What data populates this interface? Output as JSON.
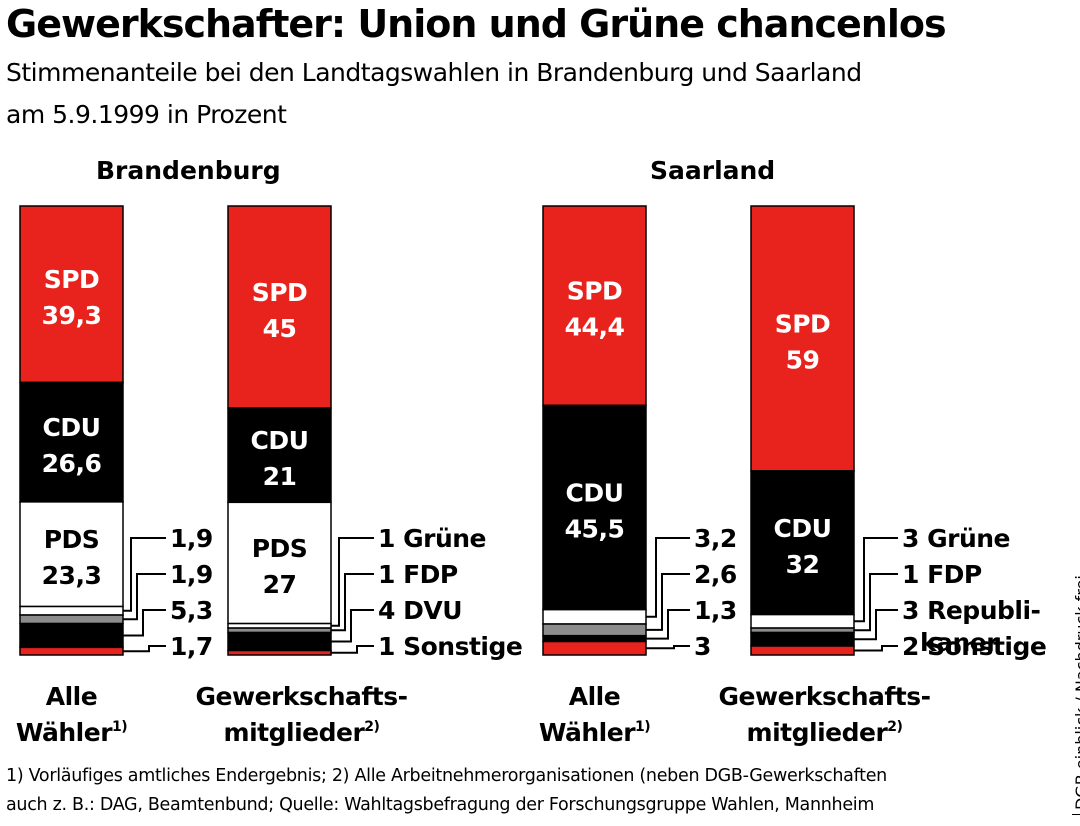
{
  "title": "Gewerkschafter: Union und Grüne chancenlos",
  "subtitle_line1": "Stimmenanteile bei den Landtagswahlen in Brandenburg und Saarland",
  "subtitle_line2": "am 5.9.1999 in Prozent",
  "source": "DGB einblick / Nachdruck frei",
  "footnote_line1": "1) Vorläufiges amtliches Endergebnis; 2) Alle Arbeitnehmerorganisationen (neben DGB-Gewerkschaften",
  "footnote_line2": "auch z. B.: DAG, Beamtenbund; Quelle: Wahltagsbefragung der Forschungsgruppe Wahlen, Mannheim",
  "colors": {
    "SPD": "#e8221c",
    "CDU": "#000000",
    "PDS": "#ffffff",
    "Grüne": "#ffffff",
    "FDP": "#8c8c8c",
    "DVU": "#000000",
    "Republikaner": "#000000",
    "Sonstige": "#e8221c"
  },
  "chart_data": [
    {
      "type": "bar",
      "stacked": true,
      "title": "Brandenburg",
      "bars": [
        {
          "label": "Alle Wähler",
          "note": "1)",
          "segments": [
            {
              "party": "SPD",
              "value": 39.3,
              "display": "39,3"
            },
            {
              "party": "CDU",
              "value": 26.6,
              "display": "26,6"
            },
            {
              "party": "PDS",
              "value": 23.3,
              "display": "23,3"
            },
            {
              "party": "Grüne",
              "value": 1.9,
              "display": "1,9"
            },
            {
              "party": "FDP",
              "value": 1.9,
              "display": "1,9"
            },
            {
              "party": "DVU",
              "value": 5.3,
              "display": "5,3"
            },
            {
              "party": "Sonstige",
              "value": 1.7,
              "display": "1,7"
            }
          ]
        },
        {
          "label": "Gewerkschafts-mitglieder",
          "note": "2)",
          "segments": [
            {
              "party": "SPD",
              "value": 45,
              "display": "45"
            },
            {
              "party": "CDU",
              "value": 21,
              "display": "21"
            },
            {
              "party": "PDS",
              "value": 27,
              "display": "27"
            },
            {
              "party": "Grüne",
              "value": 1,
              "display": "1"
            },
            {
              "party": "FDP",
              "value": 1,
              "display": "1"
            },
            {
              "party": "DVU",
              "value": 4,
              "display": "4"
            },
            {
              "party": "Sonstige",
              "value": 1,
              "display": "1"
            }
          ]
        }
      ]
    },
    {
      "type": "bar",
      "stacked": true,
      "title": "Saarland",
      "bars": [
        {
          "label": "Alle Wähler",
          "note": "1)",
          "segments": [
            {
              "party": "SPD",
              "value": 44.4,
              "display": "44,4"
            },
            {
              "party": "CDU",
              "value": 45.5,
              "display": "45,5"
            },
            {
              "party": "Grüne",
              "value": 3.2,
              "display": "3,2"
            },
            {
              "party": "FDP",
              "value": 2.6,
              "display": "2,6"
            },
            {
              "party": "Republikaner",
              "value": 1.3,
              "display": "1,3"
            },
            {
              "party": "Sonstige",
              "value": 3,
              "display": "3"
            }
          ]
        },
        {
          "label": "Gewerkschafts-mitglieder",
          "note": "2)",
          "segments": [
            {
              "party": "SPD",
              "value": 59,
              "display": "59"
            },
            {
              "party": "CDU",
              "value": 32,
              "display": "32"
            },
            {
              "party": "Grüne",
              "value": 3,
              "display": "3"
            },
            {
              "party": "FDP",
              "value": 1,
              "display": "1"
            },
            {
              "party": "Republikaner",
              "value": 3,
              "display": "3"
            },
            {
              "party": "Sonstige",
              "value": 2,
              "display": "2"
            }
          ]
        }
      ]
    }
  ]
}
